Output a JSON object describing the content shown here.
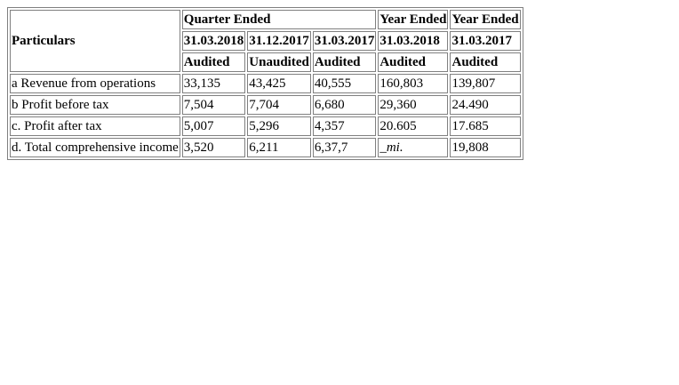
{
  "table": {
    "header": {
      "particulars": "Particulars",
      "quarter_ended": "Quarter Ended",
      "year_ended_1": "Year Ended",
      "year_ended_2": "Year Ended",
      "dates": [
        "31.03.2018",
        "31.12.2017",
        "31.03.2017",
        "31.03.2018",
        "31.03.2017"
      ],
      "status": [
        "Audited",
        "Unaudited",
        "Audited",
        "Audited",
        "Audited"
      ]
    },
    "rows": [
      {
        "label": "a Revenue from operations",
        "values": [
          "33,135",
          "43,425",
          "40,555",
          "160,803",
          "139,807"
        ]
      },
      {
        "label": "b Profit before tax",
        "values": [
          "7,504",
          "7,704",
          "6,680",
          "29,360",
          "24.490"
        ]
      },
      {
        "label": "c. Profit after tax",
        "values": [
          "5,007",
          "5,296",
          "4,357",
          "20.605",
          "17.685"
        ]
      },
      {
        "label": "d. Total comprehensive income",
        "values": [
          "3,520",
          "6,211",
          "6,37,7",
          "_mi.",
          "19,808"
        ]
      }
    ]
  }
}
